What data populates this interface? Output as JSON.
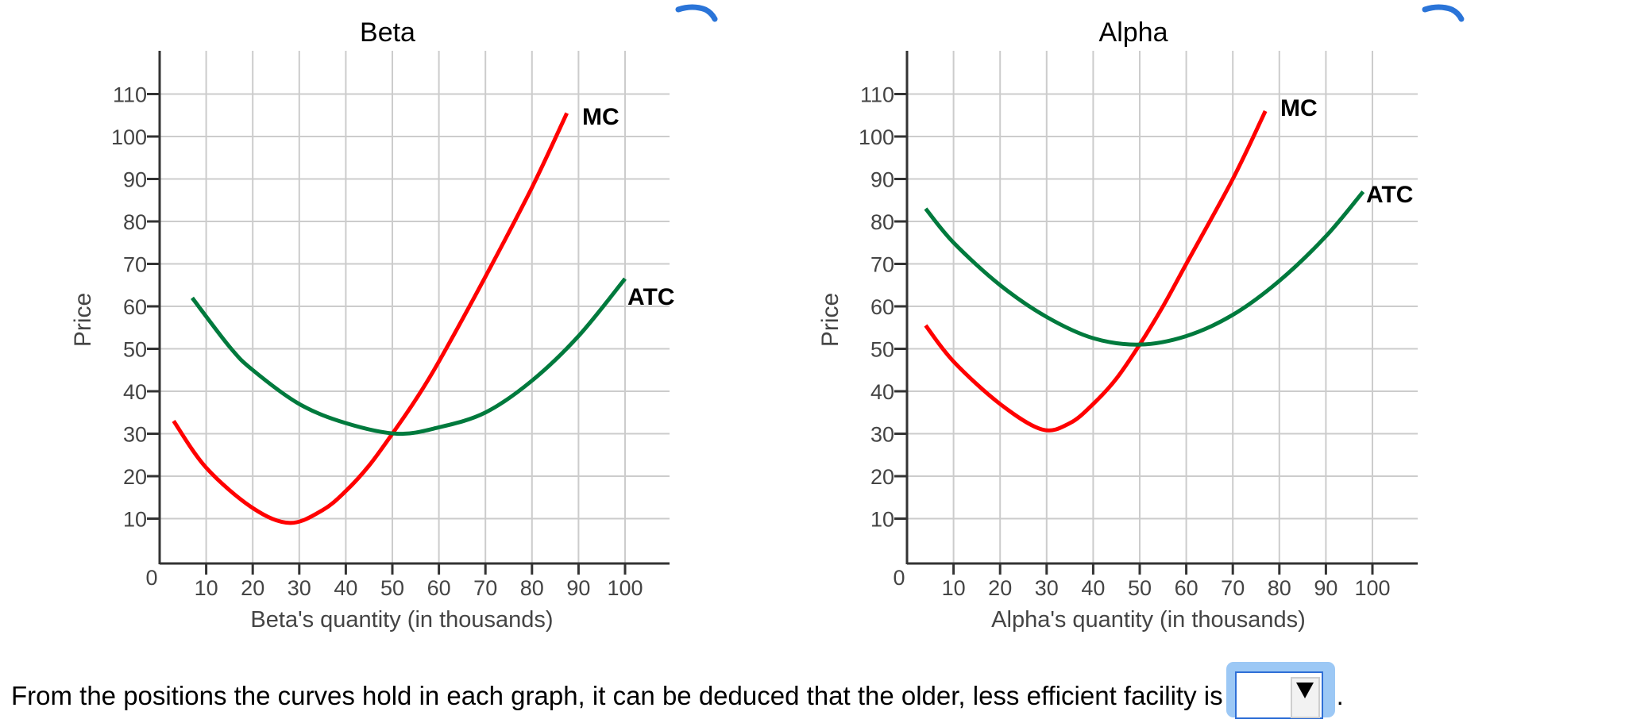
{
  "chart_data": [
    {
      "type": "line",
      "title": "Beta",
      "xlabel": "Beta's quantity (in thousands)",
      "ylabel": "Price",
      "xlim": [
        0,
        110
      ],
      "ylim": [
        0,
        115
      ],
      "x_ticks": [
        10,
        20,
        30,
        40,
        50,
        60,
        70,
        80,
        90,
        100
      ],
      "y_ticks": [
        10,
        20,
        30,
        40,
        50,
        60,
        70,
        80,
        90,
        100,
        110
      ],
      "origin_label": "0",
      "grid": true,
      "series": [
        {
          "name": "MC",
          "color": "#ff0000",
          "points": [
            [
              3,
              33
            ],
            [
              10,
              22
            ],
            [
              20,
              12.5
            ],
            [
              28,
              9
            ],
            [
              35,
              12
            ],
            [
              40,
              16.5
            ],
            [
              45,
              22.5
            ],
            [
              50,
              30
            ],
            [
              55,
              38
            ],
            [
              60,
              47
            ],
            [
              70,
              67
            ],
            [
              80,
              88
            ],
            [
              87.5,
              105.5
            ]
          ]
        },
        {
          "name": "ATC",
          "color": "#007a3d",
          "points": [
            [
              7,
              62
            ],
            [
              15,
              50.5
            ],
            [
              20,
              45
            ],
            [
              30,
              37
            ],
            [
              40,
              32.5
            ],
            [
              51,
              30
            ],
            [
              60,
              31.5
            ],
            [
              70,
              35
            ],
            [
              80,
              42.5
            ],
            [
              90,
              53
            ],
            [
              100,
              66.5
            ]
          ]
        }
      ],
      "annotations": [
        {
          "text": "MC",
          "x": 88,
          "y": 105
        },
        {
          "text": "ATC",
          "x": 100,
          "y": 66
        }
      ]
    },
    {
      "type": "line",
      "title": "Alpha",
      "xlabel": "Alpha's quantity (in thousands)",
      "ylabel": "Price",
      "xlim": [
        0,
        110
      ],
      "ylim": [
        0,
        115
      ],
      "x_ticks": [
        10,
        20,
        30,
        40,
        50,
        60,
        70,
        80,
        90,
        100
      ],
      "y_ticks": [
        10,
        20,
        30,
        40,
        50,
        60,
        70,
        80,
        90,
        100,
        110
      ],
      "origin_label": "0",
      "grid": true,
      "series": [
        {
          "name": "MC",
          "color": "#ff0000",
          "points": [
            [
              4,
              55.5
            ],
            [
              10,
              47
            ],
            [
              20,
              37
            ],
            [
              29,
              31
            ],
            [
              35,
              32.5
            ],
            [
              40,
              37
            ],
            [
              45,
              43
            ],
            [
              50,
              51
            ],
            [
              55,
              60
            ],
            [
              60,
              70
            ],
            [
              70,
              90
            ],
            [
              77,
              106
            ]
          ]
        },
        {
          "name": "ATC",
          "color": "#007a3d",
          "points": [
            [
              4,
              83
            ],
            [
              10,
              75
            ],
            [
              20,
              65
            ],
            [
              30,
              57.5
            ],
            [
              40,
              52.5
            ],
            [
              50,
              51
            ],
            [
              60,
              53
            ],
            [
              70,
              58
            ],
            [
              80,
              66
            ],
            [
              90,
              76.5
            ],
            [
              98,
              87
            ]
          ]
        }
      ],
      "annotations": [
        {
          "text": "MC",
          "x": 78,
          "y": 106
        },
        {
          "text": "ATC",
          "x": 98,
          "y": 87
        }
      ]
    }
  ],
  "question": {
    "text": "From the positions the curves hold in each graph, it can be deduced that the older, less efficient facility is",
    "dropdown_value": "",
    "dropdown_arrow": "▼",
    "trailing": "."
  },
  "icons": {
    "beta_corner_icon": "magnifier-icon",
    "alpha_corner_icon": "magnifier-icon"
  },
  "colors": {
    "mc": "#ff0000",
    "atc": "#007a3d",
    "grid": "#cccccc",
    "axis": "#333333",
    "tick_text": "#444444",
    "accent": "#2f6fd6"
  }
}
